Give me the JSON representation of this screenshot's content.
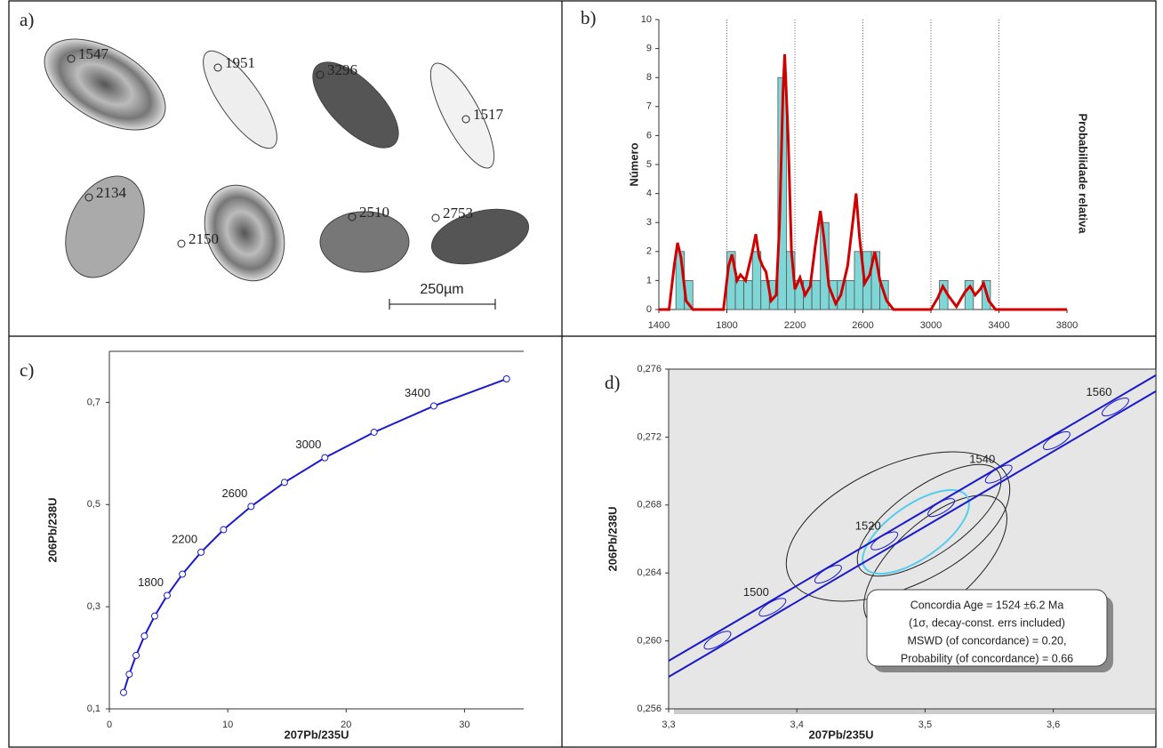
{
  "image_panel": {
    "label": "a)",
    "grain_labels": [
      "1547",
      "1951",
      "3296",
      "1517",
      "2134",
      "2150",
      "2510",
      "2753"
    ],
    "scale_bar": "250µm"
  },
  "chart_data": [
    {
      "type": "histogram",
      "panel_label": "b)",
      "ylabel": "Número",
      "y2label": "Probabilidade relativa",
      "bins": [
        1500,
        1550,
        1600,
        1650,
        1700,
        1750,
        1800,
        1850,
        1900,
        1950,
        2000,
        2050,
        2100,
        2150,
        2200,
        2250,
        2300,
        2350,
        2400,
        2450,
        2500,
        2550,
        2600,
        2650,
        2700,
        2750,
        2800,
        2850,
        2900,
        2950,
        3000,
        3050,
        3100,
        3150,
        3200,
        3250,
        3300,
        3350
      ],
      "counts": [
        2,
        1,
        0,
        0,
        0,
        0,
        2,
        1,
        1,
        2,
        1,
        1,
        8,
        2,
        1,
        1,
        1,
        3,
        1,
        1,
        1,
        2,
        2,
        2,
        1,
        0,
        0,
        0,
        0,
        0,
        0,
        1,
        0,
        0,
        1,
        0,
        1
      ],
      "color": "#7fd6d6",
      "edge_color": "#555555",
      "xlim": [
        1400,
        3800
      ],
      "xticks": [
        1400,
        1800,
        2200,
        2600,
        3000,
        3400,
        3800
      ],
      "ylim": [
        0,
        10
      ],
      "yticks": [
        0,
        1,
        2,
        3,
        4,
        5,
        6,
        7,
        8,
        9,
        10
      ],
      "grid_x": true,
      "series": [
        {
          "type": "line",
          "color": "#d00000",
          "x": [
            1400,
            1460,
            1490,
            1510,
            1530,
            1560,
            1600,
            1780,
            1810,
            1830,
            1860,
            1880,
            1910,
            1950,
            1970,
            1990,
            2010,
            2030,
            2060,
            2090,
            2110,
            2130,
            2140,
            2160,
            2180,
            2200,
            2230,
            2260,
            2290,
            2320,
            2350,
            2370,
            2400,
            2440,
            2470,
            2510,
            2540,
            2560,
            2580,
            2610,
            2640,
            2670,
            2700,
            2740,
            2780,
            3000,
            3040,
            3070,
            3100,
            3150,
            3200,
            3230,
            3260,
            3290,
            3310,
            3340,
            3380,
            3800
          ],
          "values": [
            0,
            0,
            1.5,
            2.3,
            1.8,
            0.3,
            0,
            0,
            1.5,
            1.9,
            1.0,
            1.2,
            1.0,
            2.0,
            2.6,
            1.8,
            1.5,
            1.3,
            0.3,
            0.5,
            3,
            7.5,
            8.8,
            6,
            2,
            0.7,
            1.1,
            0.5,
            0.8,
            2.2,
            3.4,
            2.5,
            0.8,
            0.2,
            0.5,
            1.5,
            3.0,
            4.0,
            2.5,
            0.9,
            1.2,
            2.0,
            1.0,
            0.3,
            0,
            0,
            0.4,
            0.8,
            0.5,
            0.1,
            0.6,
            0.8,
            0.5,
            0.7,
            0.9,
            0.3,
            0,
            0
          ]
        }
      ]
    },
    {
      "type": "concordia",
      "panel_label": "c)",
      "xlabel": "207Pb/235U",
      "ylabel": "206Pb/238U",
      "xlim": [
        0,
        35
      ],
      "xticks": [
        0,
        10,
        20,
        30
      ],
      "ylim": [
        0.1,
        0.8
      ],
      "yticks": [
        {
          "value": 0.1,
          "label": "0,1"
        },
        {
          "value": 0.3,
          "label": "0,3"
        },
        {
          "value": 0.5,
          "label": "0,5"
        },
        {
          "value": 0.7,
          "label": "0,7"
        }
      ],
      "color": "#1a1acc",
      "x": [
        1.199,
        1.677,
        2.258,
        2.961,
        3.827,
        4.881,
        6.169,
        7.741,
        9.646,
        11.97,
        14.79,
        18.2,
        22.36,
        27.41,
        33.55
      ],
      "values": [
        0.1321,
        0.1678,
        0.2046,
        0.2426,
        0.2817,
        0.3221,
        0.3637,
        0.4066,
        0.4508,
        0.4963,
        0.5433,
        0.5917,
        0.6416,
        0.693,
        0.746
      ],
      "point_labels": [
        null,
        null,
        null,
        null,
        null,
        "1800",
        null,
        "2200",
        null,
        "2600",
        null,
        "3000",
        null,
        "3400",
        null
      ]
    },
    {
      "type": "concordia_detail",
      "panel_label": "d)",
      "xlabel": "207Pb/235U",
      "ylabel": "206Pb/238U",
      "xlim": [
        3.3,
        3.68
      ],
      "xticks": [
        {
          "value": 3.3,
          "label": "3,3"
        },
        {
          "value": 3.4,
          "label": "3,4"
        },
        {
          "value": 3.5,
          "label": "3,5"
        },
        {
          "value": 3.6,
          "label": "3,6"
        }
      ],
      "ylim": [
        0.256,
        0.276
      ],
      "yticks": [
        {
          "value": 0.256,
          "label": "0,256"
        },
        {
          "value": 0.26,
          "label": "0,260"
        },
        {
          "value": 0.264,
          "label": "0,264"
        },
        {
          "value": 0.268,
          "label": "0,268"
        },
        {
          "value": 0.272,
          "label": "0,272"
        },
        {
          "value": 0.276,
          "label": "0,276"
        }
      ],
      "color": "#1a1acc",
      "x": [
        3.3381,
        3.381,
        3.4244,
        3.4683,
        3.5126,
        3.5574,
        3.6026,
        3.6484
      ],
      "values": [
        0.26004,
        0.26198,
        0.26393,
        0.26589,
        0.26785,
        0.26982,
        0.27179,
        0.27377
      ],
      "point_labels": [
        null,
        "1500",
        null,
        "1520",
        null,
        "1540",
        null,
        "1560"
      ],
      "annotation": [
        "Concordia Age = 1524 ±6.2 Ma",
        "(1σ, decay-const. errs included)",
        "MSWD (of concordance) = 0.20,",
        "Probability (of concordance) = 0.66"
      ]
    }
  ]
}
